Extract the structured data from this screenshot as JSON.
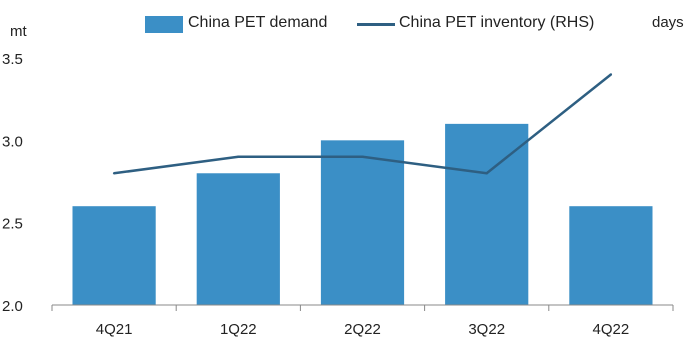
{
  "chart_data": {
    "type": "bar",
    "categories": [
      "4Q21",
      "1Q22",
      "2Q22",
      "3Q22",
      "4Q22"
    ],
    "series": [
      {
        "name": "China PET demand",
        "type": "bar",
        "axis": "left",
        "color": "#3b8fc6",
        "values": [
          2.6,
          2.8,
          3.0,
          3.1,
          2.6
        ]
      },
      {
        "name": "China PET inventory (RHS)",
        "type": "line",
        "axis": "right",
        "color": "#2e5f82",
        "values": [
          2.8,
          2.9,
          2.9,
          2.8,
          3.4
        ]
      }
    ],
    "ylabel": "mt",
    "y2label": "days",
    "ylim": [
      2.0,
      3.5
    ],
    "yticks": [
      "2.0",
      "2.5",
      "3.0",
      "3.5"
    ],
    "legend_position": "top"
  }
}
